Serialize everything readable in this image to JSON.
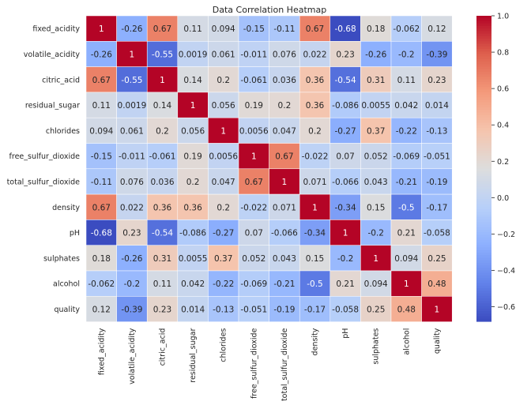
{
  "chart_data": {
    "type": "heatmap",
    "title": "Data Correlation Heatmap",
    "xlabel": "",
    "ylabel": "",
    "colormap": "coolwarm",
    "categories": [
      "fixed_acidity",
      "volatile_acidity",
      "citric_acid",
      "residual_sugar",
      "chlorides",
      "free_sulfur_dioxide",
      "total_sulfur_dioxide",
      "density",
      "pH",
      "sulphates",
      "alcohol",
      "quality"
    ],
    "labels": [
      [
        "1",
        "-0.26",
        "0.67",
        "0.11",
        "0.094",
        "-0.15",
        "-0.11",
        "0.67",
        "-0.68",
        "0.18",
        "-0.062",
        "0.12"
      ],
      [
        "-0.26",
        "1",
        "-0.55",
        "0.0019",
        "0.061",
        "-0.011",
        "0.076",
        "0.022",
        "0.23",
        "-0.26",
        "-0.2",
        "-0.39"
      ],
      [
        "0.67",
        "-0.55",
        "1",
        "0.14",
        "0.2",
        "-0.061",
        "0.036",
        "0.36",
        "-0.54",
        "0.31",
        "0.11",
        "0.23"
      ],
      [
        "0.11",
        "0.0019",
        "0.14",
        "1",
        "0.056",
        "0.19",
        "0.2",
        "0.36",
        "-0.086",
        "0.0055",
        "0.042",
        "0.014"
      ],
      [
        "0.094",
        "0.061",
        "0.2",
        "0.056",
        "1",
        "0.0056",
        "0.047",
        "0.2",
        "-0.27",
        "0.37",
        "-0.22",
        "-0.13"
      ],
      [
        "-0.15",
        "-0.011",
        "-0.061",
        "0.19",
        "0.0056",
        "1",
        "0.67",
        "-0.022",
        "0.07",
        "0.052",
        "-0.069",
        "-0.051"
      ],
      [
        "-0.11",
        "0.076",
        "0.036",
        "0.2",
        "0.047",
        "0.67",
        "1",
        "0.071",
        "-0.066",
        "0.043",
        "-0.21",
        "-0.19"
      ],
      [
        "0.67",
        "0.022",
        "0.36",
        "0.36",
        "0.2",
        "-0.022",
        "0.071",
        "1",
        "-0.34",
        "0.15",
        "-0.5",
        "-0.17"
      ],
      [
        "-0.68",
        "0.23",
        "-0.54",
        "-0.086",
        "-0.27",
        "0.07",
        "-0.066",
        "-0.34",
        "1",
        "-0.2",
        "0.21",
        "-0.058"
      ],
      [
        "0.18",
        "-0.26",
        "0.31",
        "0.0055",
        "0.37",
        "0.052",
        "0.043",
        "0.15",
        "-0.2",
        "1",
        "0.094",
        "0.25"
      ],
      [
        "-0.062",
        "-0.2",
        "0.11",
        "0.042",
        "-0.22",
        "-0.069",
        "-0.21",
        "-0.5",
        "0.21",
        "0.094",
        "1",
        "0.48"
      ],
      [
        "0.12",
        "-0.39",
        "0.23",
        "0.014",
        "-0.13",
        "-0.051",
        "-0.19",
        "-0.17",
        "-0.058",
        "0.25",
        "0.48",
        "1"
      ]
    ],
    "colorbar": {
      "range": [
        -0.68,
        1.0
      ],
      "ticks": [
        -0.6,
        -0.4,
        -0.2,
        0.0,
        0.2,
        0.4,
        0.6,
        0.8,
        1.0
      ],
      "tick_labels": [
        "−0.6",
        "−0.4",
        "−0.2",
        "0.0",
        "0.2",
        "0.4",
        "0.6",
        "0.8",
        "1.0"
      ]
    },
    "grid": true
  }
}
